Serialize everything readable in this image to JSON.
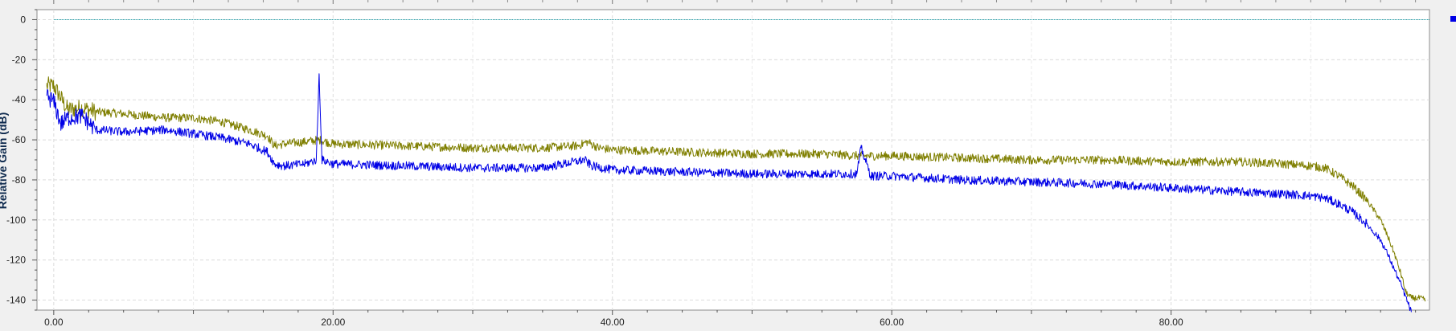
{
  "chart_data": {
    "type": "line",
    "ylabel": "Relative Gain (dB)",
    "xlim": [
      -1.2,
      98.5
    ],
    "ylim": [
      -145,
      5
    ],
    "x_ticks": [
      0,
      20,
      40,
      60,
      80
    ],
    "x_tick_labels": [
      "0.00",
      "20.00",
      "40.00",
      "60.00",
      "80.00"
    ],
    "y_ticks": [
      0,
      -20,
      -40,
      -60,
      -80,
      -100,
      -120,
      -140
    ],
    "y_tick_labels": [
      "0",
      "-20",
      "-40",
      "-60",
      "-80",
      "-100",
      "-120",
      "-140"
    ],
    "grid": true,
    "legend": "right",
    "series": [
      {
        "color": "#00929e",
        "style": "dotted",
        "x": [
          0,
          98.5
        ],
        "y": [
          0,
          0
        ]
      },
      {
        "color": "#7f7f00",
        "x": [
          -0.5,
          0,
          0.5,
          1,
          2,
          3,
          5,
          8,
          10,
          12,
          14,
          15.3,
          15.8,
          16.5,
          18,
          19,
          20,
          25,
          30,
          35,
          37.5,
          38.2,
          39,
          40,
          45,
          50,
          55,
          57.8,
          60,
          65,
          70,
          75,
          80,
          85,
          88,
          90,
          91,
          92,
          93,
          94,
          95,
          95.5,
          96,
          96.5,
          96.8,
          97.2,
          97.8,
          98.2
        ],
        "y": [
          -33,
          -33,
          -39,
          -45,
          -44,
          -46,
          -47,
          -49,
          -49,
          -51,
          -55,
          -58,
          -63,
          -62,
          -61,
          -60,
          -62,
          -63,
          -64,
          -64,
          -63,
          -61,
          -64,
          -65,
          -66,
          -67,
          -67,
          -68,
          -68,
          -69,
          -70,
          -70,
          -71,
          -71,
          -72,
          -73,
          -74,
          -78,
          -83,
          -90,
          -100,
          -108,
          -117,
          -128,
          -136,
          -139,
          -139,
          -140
        ]
      },
      {
        "color": "#0000e6",
        "x": [
          -0.5,
          0,
          0.5,
          1,
          2,
          3,
          5,
          8,
          10,
          12,
          14,
          15.3,
          15.8,
          16.5,
          18,
          18.8,
          19,
          19.2,
          20,
          25,
          30,
          35,
          38,
          38.5,
          40,
          45,
          50,
          55,
          57.5,
          57.8,
          58.5,
          60,
          65,
          70,
          75,
          80,
          85,
          88,
          90,
          91,
          92,
          93,
          94,
          95,
          95.5,
          96,
          96.5,
          97.2
        ],
        "y": [
          -38,
          -41,
          -52,
          -49,
          -48,
          -55,
          -56,
          -55,
          -57,
          -59,
          -62,
          -66,
          -72,
          -73,
          -72,
          -70,
          -27,
          -70,
          -72,
          -73,
          -74,
          -74,
          -70,
          -73,
          -75,
          -76,
          -77,
          -77,
          -77,
          -64,
          -78,
          -78,
          -80,
          -81,
          -82,
          -84,
          -86,
          -87,
          -88,
          -89,
          -92,
          -96,
          -102,
          -110,
          -117,
          -125,
          -133,
          -146
        ]
      }
    ]
  }
}
